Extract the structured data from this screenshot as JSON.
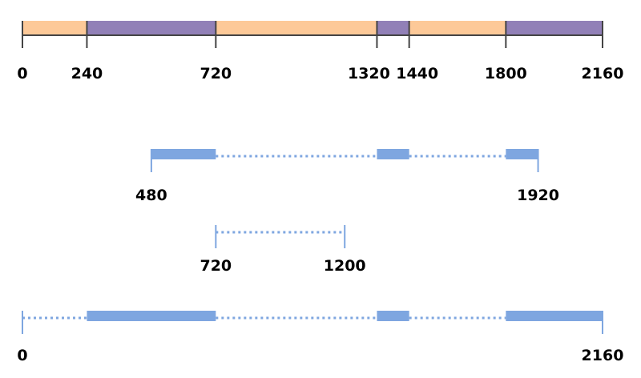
{
  "colors": {
    "segment_a": "#fdc998",
    "segment_b": "#9180b7",
    "axis_line": "#444444",
    "interval": "#7ea6e0"
  },
  "scale": {
    "min": 0,
    "max": 2160
  },
  "timeline": {
    "segments": [
      {
        "start": 0,
        "end": 240,
        "kind": "a"
      },
      {
        "start": 240,
        "end": 720,
        "kind": "b"
      },
      {
        "start": 720,
        "end": 1320,
        "kind": "a"
      },
      {
        "start": 1320,
        "end": 1440,
        "kind": "b"
      },
      {
        "start": 1440,
        "end": 1800,
        "kind": "a"
      },
      {
        "start": 1800,
        "end": 2160,
        "kind": "b"
      }
    ],
    "ticks": [
      "0",
      "240",
      "720",
      "1320",
      "1440",
      "1800",
      "2160"
    ]
  },
  "rows": [
    {
      "range": [
        480,
        1920
      ],
      "solid": [
        [
          480,
          720
        ],
        [
          1320,
          1440
        ],
        [
          1800,
          1920
        ]
      ],
      "dotted": [
        [
          720,
          1320
        ],
        [
          1440,
          1800
        ]
      ],
      "labels": [
        "480",
        "1920"
      ]
    },
    {
      "range": [
        720,
        1200
      ],
      "solid": [],
      "dotted": [
        [
          720,
          1200
        ]
      ],
      "labels": [
        "720",
        "1200"
      ]
    },
    {
      "range": [
        0,
        2160
      ],
      "solid": [
        [
          240,
          720
        ],
        [
          1320,
          1440
        ],
        [
          1800,
          2160
        ]
      ],
      "dotted": [
        [
          0,
          240
        ],
        [
          720,
          1320
        ],
        [
          1440,
          1800
        ]
      ],
      "labels": [
        "0",
        "2160"
      ]
    }
  ]
}
